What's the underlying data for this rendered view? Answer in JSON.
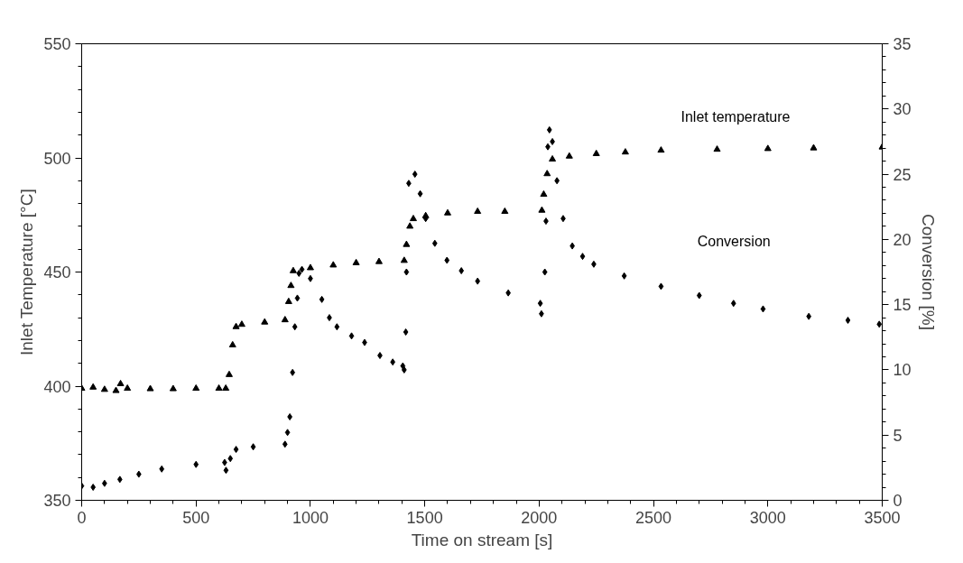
{
  "chart_data": {
    "type": "scatter",
    "xlabel": "Time on stream [s]",
    "ylabel": "Inlet Temperature [°C]",
    "y2label": "Conversion [%]",
    "xlim": [
      0,
      3500
    ],
    "xticks": [
      0,
      500,
      1000,
      1500,
      2000,
      2500,
      3000,
      3500
    ],
    "ylim": [
      350,
      550
    ],
    "yticks": [
      350,
      400,
      450,
      500,
      550
    ],
    "y2lim": [
      0,
      35
    ],
    "y2ticks": [
      0,
      5,
      10,
      15,
      20,
      25,
      30,
      35
    ],
    "series": [
      {
        "name": "Inlet temperature",
        "color": "#000000",
        "marker": "triangle",
        "x": [
          0,
          50,
          100,
          150,
          170,
          200,
          300,
          400,
          500,
          600,
          630,
          645,
          660,
          675,
          700,
          800,
          889,
          905,
          915,
          925,
          1000,
          1100,
          1200,
          1300,
          1410,
          1420,
          1435,
          1450,
          1504,
          1600,
          1731,
          1850,
          2012,
          2020,
          2035,
          2058,
          2132,
          2250,
          2377,
          2533,
          2778,
          3000,
          3200,
          3500
        ],
        "values": [
          399,
          399.5,
          398.5,
          398,
          401,
          399,
          398.8,
          398.8,
          399,
          399,
          399,
          405,
          418,
          426,
          427,
          428,
          429,
          437,
          444,
          450.5,
          451.8,
          453,
          454,
          454.5,
          455,
          462,
          470,
          473.3,
          474.6,
          475.8,
          476.5,
          476.5,
          477,
          484,
          493,
          499.4,
          500.7,
          501.8,
          502.5,
          503.3,
          503.7,
          504,
          504.3,
          504.7
        ]
      },
      {
        "name": "Conversion",
        "color": "#000000",
        "marker": "diamond",
        "axis": "y2",
        "x": [
          0,
          50,
          100,
          167,
          250,
          350,
          500,
          625,
          631,
          650,
          675,
          750,
          889,
          900,
          910,
          922,
          932,
          943,
          950,
          963,
          1000,
          1050,
          1083,
          1116,
          1180,
          1237,
          1304,
          1360,
          1404,
          1410,
          1417,
          1420,
          1430,
          1457,
          1480,
          1504,
          1544,
          1597,
          1660,
          1731,
          1865,
          2005,
          2010,
          2025,
          2030,
          2038,
          2045,
          2058,
          2078,
          2105,
          2145,
          2190,
          2239,
          2372,
          2533,
          2700,
          2850,
          2979,
          3179,
          3350,
          3487
        ],
        "values": [
          1.1,
          1.0,
          1.3,
          1.6,
          2.0,
          2.4,
          2.75,
          2.9,
          2.3,
          3.2,
          3.9,
          4.1,
          4.3,
          5.2,
          6.4,
          9.8,
          13.3,
          15.5,
          17.4,
          17.7,
          17.0,
          15.4,
          14.0,
          13.3,
          12.6,
          12.1,
          11.1,
          10.6,
          10.3,
          10.0,
          12.9,
          17.5,
          24.3,
          25.0,
          23.5,
          21.6,
          19.7,
          18.4,
          17.6,
          16.8,
          15.9,
          15.1,
          14.3,
          17.5,
          21.4,
          27.1,
          28.4,
          27.5,
          24.5,
          21.6,
          19.5,
          18.7,
          18.1,
          17.2,
          16.4,
          15.7,
          15.1,
          14.67,
          14.1,
          13.8,
          13.5
        ]
      }
    ]
  }
}
